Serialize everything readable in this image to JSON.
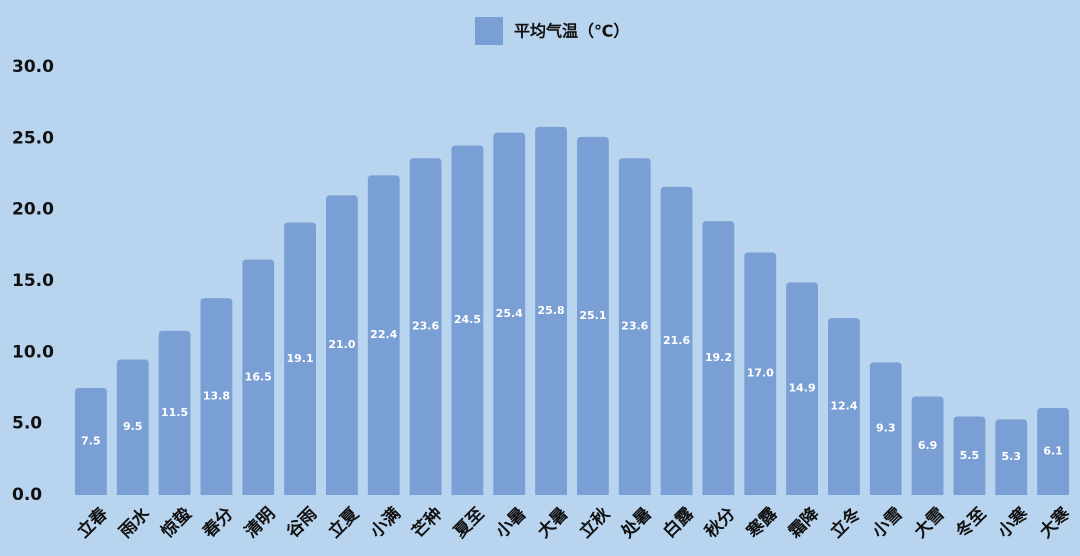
{
  "chart_data": {
    "type": "bar",
    "categories": [
      "立春",
      "雨水",
      "惊蛰",
      "春分",
      "清明",
      "谷雨",
      "立夏",
      "小满",
      "芒种",
      "夏至",
      "小暑",
      "大暑",
      "立秋",
      "处暑",
      "白露",
      "秋分",
      "寒露",
      "霜降",
      "立冬",
      "小雪",
      "大雪",
      "冬至",
      "小寒",
      "大寒"
    ],
    "series": [
      {
        "name": "平均气温（℃）",
        "color": "#7a9fd4",
        "values": [
          7.5,
          9.5,
          11.5,
          13.8,
          16.5,
          19.1,
          21.0,
          22.4,
          23.6,
          24.5,
          25.4,
          25.8,
          25.1,
          23.6,
          21.6,
          19.2,
          17.0,
          14.9,
          12.4,
          9.3,
          6.9,
          5.5,
          5.3,
          6.1
        ],
        "value_labels": [
          "7.5",
          "9.5",
          "11.5",
          "13.8",
          "16.5",
          "19.1",
          "21.0",
          "22.4",
          "23.6",
          "24.5",
          "25.4",
          "25.8",
          "25.1",
          "23.6",
          "21.6",
          "19.2",
          "17.0",
          "14.9",
          "12.4",
          "9.3",
          "6.9",
          "5.5",
          "5.3",
          "6.1"
        ]
      }
    ],
    "ylim": [
      0,
      30
    ],
    "yticks": [
      {
        "value": 0,
        "label": "0.0"
      },
      {
        "value": 5,
        "label": "5.0"
      },
      {
        "value": 10,
        "label": "10.0"
      },
      {
        "value": 15,
        "label": "15.0"
      },
      {
        "value": 20,
        "label": "20.0"
      },
      {
        "value": 25,
        "label": "25.0"
      },
      {
        "value": 30,
        "label": "30.0"
      }
    ],
    "legend": "top"
  }
}
